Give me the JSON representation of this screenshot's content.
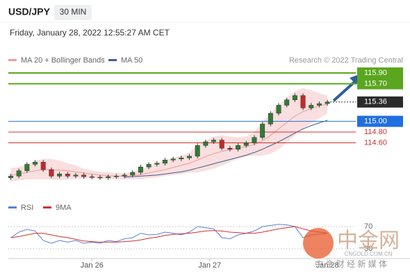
{
  "header": {
    "symbol": "USD/JPY",
    "timeframe": "30 MIN",
    "timestamp": "Friday, January 28, 2022 12:55:27 AM CET"
  },
  "chart_data": [
    {
      "type": "candlestick",
      "legend": [
        {
          "name": "MA 20 + Bollinger Bands",
          "color": "#ef9a9a"
        },
        {
          "name": "MA 50",
          "color": "#3b5f8f"
        }
      ],
      "source": "Research © 2022 Trading Central",
      "open": [
        113.95,
        113.98,
        114.08,
        114.2,
        114.24,
        114.1,
        113.98,
        114.02,
        113.98,
        114.0,
        113.97,
        113.96,
        113.95,
        113.97,
        113.98,
        114.0,
        114.05,
        114.15,
        114.2,
        114.22,
        114.28,
        114.3,
        114.32,
        114.35,
        114.55,
        114.62,
        114.65,
        114.5,
        114.48,
        114.55,
        114.6,
        114.7,
        114.95,
        115.15,
        115.3,
        115.4,
        115.48,
        115.25,
        115.3,
        115.33
      ],
      "high": [
        114.02,
        114.12,
        114.24,
        114.28,
        114.28,
        114.14,
        114.06,
        114.06,
        114.04,
        114.04,
        114.01,
        114.0,
        114.01,
        114.02,
        114.04,
        114.09,
        114.19,
        114.24,
        114.26,
        114.32,
        114.34,
        114.36,
        114.39,
        114.59,
        114.66,
        114.69,
        114.69,
        114.54,
        114.59,
        114.64,
        114.74,
        114.99,
        115.19,
        115.34,
        115.44,
        115.52,
        115.52,
        115.34,
        115.37,
        115.4
      ],
      "low": [
        113.91,
        113.94,
        114.04,
        114.16,
        114.06,
        113.94,
        113.94,
        113.94,
        113.94,
        113.93,
        113.92,
        113.91,
        113.91,
        113.93,
        113.94,
        113.96,
        114.01,
        114.11,
        114.16,
        114.18,
        114.24,
        114.26,
        114.28,
        114.31,
        114.51,
        114.58,
        114.46,
        114.44,
        114.44,
        114.51,
        114.56,
        114.66,
        114.91,
        115.11,
        115.26,
        115.36,
        115.21,
        115.21,
        115.26,
        115.29
      ],
      "close": [
        113.98,
        114.08,
        114.2,
        114.24,
        114.1,
        113.98,
        114.02,
        113.98,
        114.0,
        113.97,
        113.96,
        113.95,
        113.97,
        113.98,
        114.0,
        114.05,
        114.15,
        114.2,
        114.22,
        114.28,
        114.3,
        114.32,
        114.35,
        114.55,
        114.62,
        114.65,
        114.5,
        114.48,
        114.55,
        114.6,
        114.7,
        114.95,
        115.15,
        115.3,
        115.4,
        115.48,
        115.25,
        115.3,
        115.33,
        115.36
      ],
      "ma20": [
        114.0,
        114.02,
        114.05,
        114.08,
        114.1,
        114.1,
        114.09,
        114.08,
        114.06,
        114.04,
        114.02,
        114.0,
        113.99,
        113.98,
        113.98,
        113.99,
        114.01,
        114.04,
        114.07,
        114.1,
        114.14,
        114.18,
        114.22,
        114.28,
        114.34,
        114.4,
        114.44,
        114.47,
        114.5,
        114.53,
        114.57,
        114.64,
        114.74,
        114.86,
        114.98,
        115.1,
        115.18,
        115.24,
        115.29,
        115.32
      ],
      "upper": [
        114.13,
        114.15,
        114.2,
        114.26,
        114.3,
        114.3,
        114.27,
        114.22,
        114.18,
        114.12,
        114.08,
        114.06,
        114.05,
        114.04,
        114.04,
        114.06,
        114.1,
        114.16,
        114.22,
        114.28,
        114.32,
        114.36,
        114.42,
        114.55,
        114.64,
        114.72,
        114.74,
        114.72,
        114.7,
        114.72,
        114.8,
        114.98,
        115.14,
        115.3,
        115.44,
        115.56,
        115.62,
        115.58,
        115.52,
        115.48
      ],
      "lower": [
        113.88,
        113.9,
        113.92,
        113.92,
        113.92,
        113.92,
        113.91,
        113.92,
        113.93,
        113.94,
        113.94,
        113.93,
        113.92,
        113.92,
        113.92,
        113.92,
        113.92,
        113.94,
        113.96,
        113.98,
        114.0,
        114.02,
        114.04,
        114.05,
        114.08,
        114.12,
        114.18,
        114.24,
        114.3,
        114.34,
        114.36,
        114.36,
        114.4,
        114.48,
        114.6,
        114.74,
        114.86,
        114.96,
        115.06,
        115.14
      ],
      "ma50": [
        null,
        null,
        null,
        null,
        null,
        null,
        null,
        null,
        null,
        null,
        null,
        null,
        null,
        null,
        113.96,
        113.97,
        113.98,
        113.99,
        114.0,
        114.02,
        114.04,
        114.06,
        114.09,
        114.13,
        114.17,
        114.21,
        114.25,
        114.29,
        114.33,
        114.37,
        114.42,
        114.48,
        114.55,
        114.62,
        114.7,
        114.78,
        114.86,
        114.92,
        114.97,
        115.02
      ],
      "levels": [
        {
          "value": 115.9,
          "label": "115.90",
          "color": "#5aa61e",
          "style": "box"
        },
        {
          "value": 115.7,
          "label": "115.70",
          "color": "#5aa61e",
          "style": "box"
        },
        {
          "value": 115.36,
          "label": "115.36",
          "color": "#2b2b2b",
          "style": "current"
        },
        {
          "value": 115.0,
          "label": "115.00",
          "color": "#1f6fe0",
          "style": "box"
        },
        {
          "value": 114.8,
          "label": "114.80",
          "color": "#d32f2f",
          "style": "text"
        },
        {
          "value": 114.6,
          "label": "114.60",
          "color": "#d32f2f",
          "style": "text"
        }
      ],
      "ylim": [
        113.83,
        116.03
      ],
      "xlim": [
        -0.3,
        42.5
      ],
      "xticks": [
        {
          "value": 10,
          "label": "Jan 26"
        },
        {
          "value": 24.5,
          "label": "Jan 27"
        },
        {
          "value": 39,
          "label": "Jan 28"
        }
      ]
    },
    {
      "type": "line",
      "series": [
        {
          "name": "RSI",
          "color": "#5c7fd6",
          "values": [
            50,
            60,
            65,
            62,
            45,
            40,
            45,
            42,
            45,
            40,
            42,
            40,
            45,
            43,
            48,
            50,
            58,
            55,
            56,
            60,
            58,
            55,
            60,
            70,
            68,
            66,
            50,
            48,
            55,
            58,
            62,
            70,
            72,
            74,
            73,
            70,
            50,
            55,
            56,
            58
          ]
        },
        {
          "name": "9MA",
          "color": "#d32f2f",
          "values": [
            50,
            52,
            55,
            58,
            58,
            55,
            52,
            50,
            47,
            44,
            43,
            42,
            42,
            42,
            43,
            44,
            46,
            49,
            51,
            54,
            56,
            57,
            58,
            60,
            62,
            63,
            62,
            60,
            59,
            58,
            58,
            60,
            63,
            66,
            68,
            70,
            66,
            62,
            60,
            58
          ]
        }
      ],
      "ylim": [
        20,
        80
      ],
      "yticks": [
        70,
        30
      ]
    }
  ],
  "watermark": {
    "name": "中金网",
    "site": "CNGOLD.COM.CN",
    "tagline": "中 金 财 经 新 媒 体"
  }
}
